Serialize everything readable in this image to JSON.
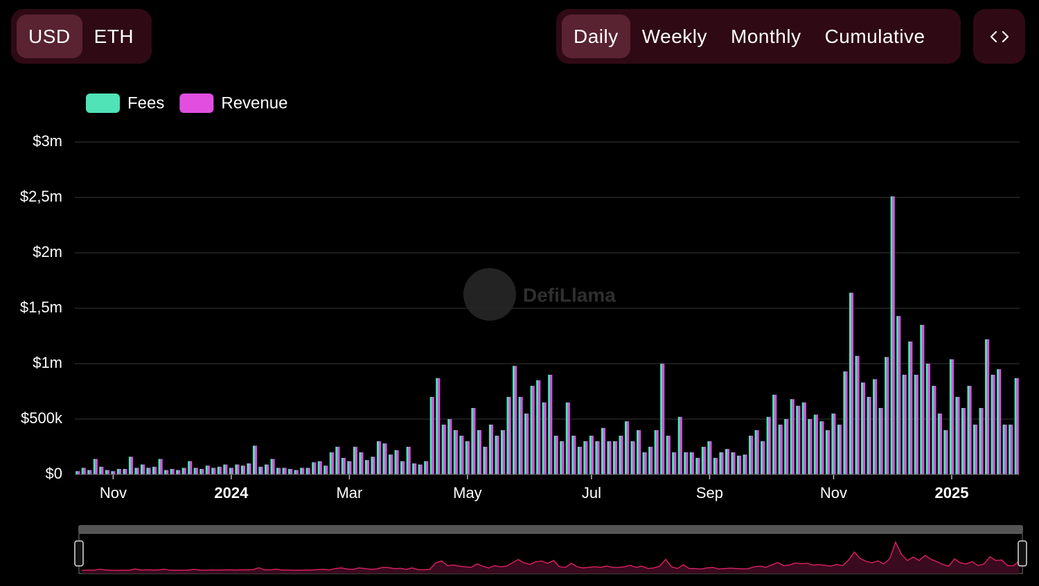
{
  "ui": {
    "currency": [
      "USD",
      "ETH"
    ],
    "periods": [
      "Daily",
      "Weekly",
      "Monthly",
      "Cumulative"
    ]
  },
  "chart_data": {
    "type": "bar",
    "watermark": "DefiLlama",
    "categories": [
      null,
      null,
      null,
      null,
      null,
      null,
      "Nov",
      null,
      null,
      null,
      null,
      null,
      null,
      null,
      null,
      null,
      null,
      null,
      null,
      null,
      null,
      null,
      null,
      null,
      null,
      null,
      "2024",
      null,
      null,
      null,
      null,
      null,
      null,
      null,
      null,
      null,
      null,
      null,
      null,
      null,
      null,
      null,
      null,
      null,
      null,
      null,
      "Mar",
      null,
      null,
      null,
      null,
      null,
      null,
      null,
      null,
      null,
      null,
      null,
      null,
      null,
      null,
      null,
      null,
      null,
      null,
      null,
      "May",
      null,
      null,
      null,
      null,
      null,
      null,
      null,
      null,
      null,
      null,
      null,
      null,
      null,
      null,
      null,
      null,
      null,
      null,
      null,
      null,
      "Jul",
      null,
      null,
      null,
      null,
      null,
      null,
      null,
      null,
      null,
      null,
      null,
      null,
      null,
      null,
      null,
      null,
      null,
      null,
      null,
      "Sep",
      null,
      null,
      null,
      null,
      null,
      null,
      null,
      null,
      null,
      null,
      null,
      null,
      null,
      null,
      null,
      null,
      null,
      null,
      null,
      null,
      "Nov",
      null,
      null,
      null,
      null,
      null,
      null,
      null,
      null,
      null,
      null,
      null,
      null,
      null,
      null,
      null,
      null,
      null,
      null,
      null,
      "2025",
      null,
      null,
      null,
      null,
      null,
      null,
      null,
      null,
      null,
      null,
      null
    ],
    "series": [
      {
        "name": "Fees",
        "color": "#4fe3b7",
        "values": [
          30000,
          60000,
          40000,
          140000,
          70000,
          40000,
          30000,
          50000,
          50000,
          160000,
          60000,
          90000,
          60000,
          70000,
          140000,
          40000,
          50000,
          40000,
          60000,
          120000,
          60000,
          50000,
          80000,
          60000,
          70000,
          90000,
          60000,
          90000,
          80000,
          100000,
          260000,
          70000,
          90000,
          140000,
          60000,
          60000,
          50000,
          40000,
          60000,
          60000,
          110000,
          120000,
          80000,
          200000,
          250000,
          150000,
          120000,
          250000,
          200000,
          130000,
          160000,
          300000,
          280000,
          180000,
          220000,
          120000,
          250000,
          100000,
          90000,
          120000,
          700000,
          870000,
          450000,
          500000,
          400000,
          350000,
          300000,
          600000,
          400000,
          250000,
          450000,
          350000,
          400000,
          700000,
          980000,
          700000,
          550000,
          800000,
          850000,
          650000,
          900000,
          350000,
          300000,
          650000,
          350000,
          250000,
          300000,
          350000,
          300000,
          420000,
          300000,
          300000,
          350000,
          480000,
          300000,
          400000,
          200000,
          250000,
          400000,
          1000000,
          350000,
          200000,
          520000,
          200000,
          200000,
          150000,
          250000,
          300000,
          150000,
          200000,
          230000,
          200000,
          170000,
          180000,
          350000,
          400000,
          300000,
          520000,
          720000,
          450000,
          500000,
          680000,
          620000,
          650000,
          500000,
          540000,
          480000,
          400000,
          550000,
          450000,
          930000,
          1640000,
          1070000,
          830000,
          700000,
          860000,
          600000,
          1060000,
          2510000,
          1430000,
          900000,
          1200000,
          900000,
          1350000,
          1000000,
          800000,
          550000,
          400000,
          1040000,
          700000,
          600000,
          800000,
          450000,
          600000,
          1220000,
          900000,
          950000,
          450000,
          450000,
          870000
        ]
      },
      {
        "name": "Revenue",
        "color": "#e24fe0",
        "values": [
          30000,
          60000,
          40000,
          140000,
          70000,
          40000,
          30000,
          50000,
          50000,
          160000,
          60000,
          90000,
          60000,
          70000,
          140000,
          40000,
          50000,
          40000,
          60000,
          120000,
          60000,
          50000,
          80000,
          60000,
          70000,
          90000,
          60000,
          90000,
          80000,
          100000,
          260000,
          70000,
          90000,
          140000,
          60000,
          60000,
          50000,
          40000,
          60000,
          60000,
          110000,
          120000,
          80000,
          200000,
          250000,
          150000,
          120000,
          250000,
          200000,
          130000,
          160000,
          300000,
          280000,
          180000,
          220000,
          120000,
          250000,
          100000,
          90000,
          120000,
          700000,
          870000,
          450000,
          500000,
          400000,
          350000,
          300000,
          600000,
          400000,
          250000,
          450000,
          350000,
          400000,
          700000,
          980000,
          700000,
          550000,
          800000,
          850000,
          650000,
          900000,
          350000,
          300000,
          650000,
          350000,
          250000,
          300000,
          350000,
          300000,
          420000,
          300000,
          300000,
          350000,
          480000,
          300000,
          400000,
          200000,
          250000,
          400000,
          1000000,
          350000,
          200000,
          520000,
          200000,
          200000,
          150000,
          250000,
          300000,
          150000,
          200000,
          230000,
          200000,
          170000,
          180000,
          350000,
          400000,
          300000,
          520000,
          720000,
          450000,
          500000,
          680000,
          620000,
          650000,
          500000,
          540000,
          480000,
          400000,
          550000,
          450000,
          930000,
          1640000,
          1070000,
          830000,
          700000,
          860000,
          600000,
          1060000,
          2510000,
          1430000,
          900000,
          1200000,
          900000,
          1350000,
          1000000,
          800000,
          550000,
          400000,
          1040000,
          700000,
          600000,
          800000,
          450000,
          600000,
          1220000,
          900000,
          950000,
          450000,
          450000,
          870000
        ]
      }
    ],
    "ylim": [
      0,
      3000000
    ],
    "yticks": [
      {
        "value": 0,
        "label": "$0"
      },
      {
        "value": 500000,
        "label": "$500k"
      },
      {
        "value": 1000000,
        "label": "$1m"
      },
      {
        "value": 1500000,
        "label": "$1,5m"
      },
      {
        "value": 2000000,
        "label": "$2m"
      },
      {
        "value": 2500000,
        "label": "$2,5m"
      },
      {
        "value": 3000000,
        "label": "$3m"
      }
    ],
    "grid": true,
    "legend": "top-left"
  }
}
